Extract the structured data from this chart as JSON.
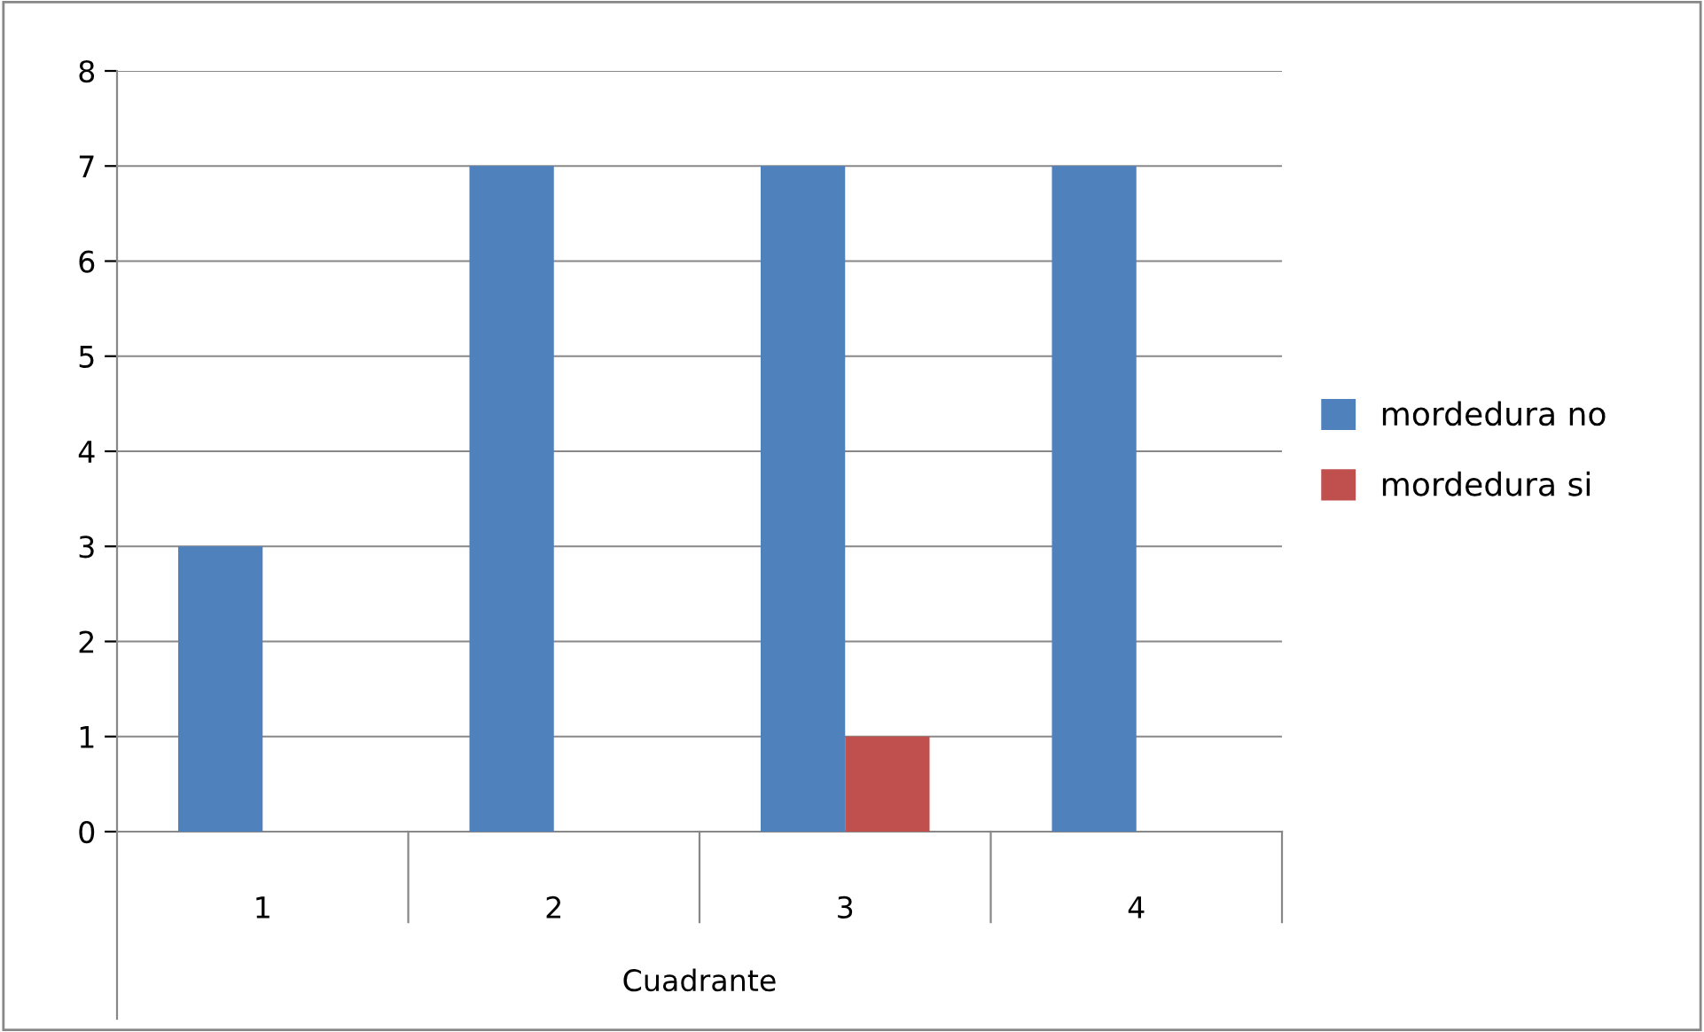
{
  "chart_data": {
    "type": "bar",
    "xlabel": "Cuadrante",
    "categories": [
      "1",
      "2",
      "3",
      "4"
    ],
    "series": [
      {
        "name": "mordedura no",
        "color": "#4f81bd",
        "values": [
          3,
          7,
          7,
          7
        ]
      },
      {
        "name": "mordedura si",
        "color": "#c0504d",
        "values": [
          0,
          0,
          1,
          0
        ]
      }
    ],
    "ylim": [
      0,
      8
    ],
    "yticks": [
      0,
      1,
      2,
      3,
      4,
      5,
      6,
      7,
      8
    ],
    "grid": "y",
    "legend": "right"
  }
}
